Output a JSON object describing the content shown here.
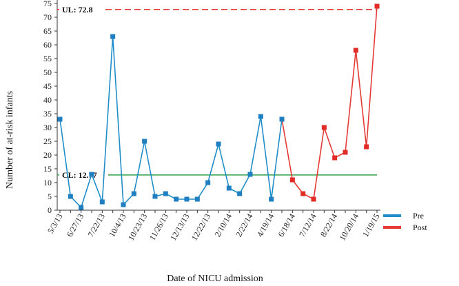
{
  "chart_data": {
    "type": "line",
    "xlabel": "Date of NICU admission",
    "ylabel": "Number of at-risk infants",
    "ylim": [
      0,
      75
    ],
    "ytick_step": 5,
    "x_tick_labels": [
      "5/3/13",
      "6/27/13",
      "7/22/13",
      "10/4/13",
      "10/23/13",
      "11/26/13",
      "12/13/13",
      "12/22/13",
      "2/10/14",
      "2/22/14",
      "4/19/14",
      "6/18/14",
      "7/12/14",
      "8/22/14",
      "10/20/14",
      "1/19/15"
    ],
    "series": [
      {
        "name": "Pre",
        "color": "#1f8dc9",
        "marker_color": "#1f7fc0",
        "values": [
          33,
          5,
          1,
          13,
          3,
          63,
          2,
          6,
          25,
          5,
          6,
          4,
          4,
          4,
          10,
          24,
          8,
          6,
          13,
          34,
          4,
          33
        ]
      },
      {
        "name": "Post",
        "color": "#e53935",
        "marker_color": "#e02b26",
        "values": [
          33,
          11,
          6,
          4,
          30,
          19,
          21,
          58,
          23,
          74
        ]
      }
    ],
    "post_start_index": 21,
    "reference_lines": [
      {
        "label": "UL: 72.8",
        "value": 72.8,
        "color": "#e53935",
        "style": "dashed"
      },
      {
        "label": "CL: 12.77",
        "value": 12.77,
        "color": "#2ea043",
        "style": "solid"
      }
    ],
    "grid": false,
    "legend_position": "right"
  }
}
